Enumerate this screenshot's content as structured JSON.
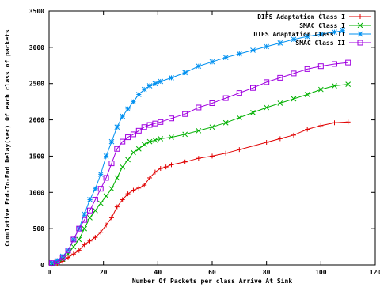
{
  "chart_data": {
    "type": "line",
    "title": "",
    "xlabel": "Number Of Packets per class Arrive At Sink",
    "ylabel": "Cumulative End-To-End Delay(sec) Of each class of packets",
    "xlim": [
      0,
      120
    ],
    "ylim": [
      0,
      3500
    ],
    "xticks": [
      0,
      20,
      40,
      60,
      80,
      100,
      120
    ],
    "yticks": [
      0,
      500,
      1000,
      1500,
      2000,
      2500,
      3000,
      3500
    ],
    "grid": false,
    "legend_position": "top-right",
    "series": [
      {
        "name": "DIFS Adaptation Class I",
        "color": "#e00000",
        "marker": "plus",
        "points": [
          [
            1,
            10
          ],
          [
            3,
            20
          ],
          [
            5,
            50
          ],
          [
            7,
            100
          ],
          [
            9,
            150
          ],
          [
            11,
            200
          ],
          [
            13,
            280
          ],
          [
            15,
            330
          ],
          [
            17,
            380
          ],
          [
            19,
            450
          ],
          [
            21,
            550
          ],
          [
            23,
            650
          ],
          [
            25,
            800
          ],
          [
            27,
            900
          ],
          [
            29,
            980
          ],
          [
            31,
            1030
          ],
          [
            33,
            1060
          ],
          [
            35,
            1100
          ],
          [
            37,
            1200
          ],
          [
            39,
            1280
          ],
          [
            41,
            1330
          ],
          [
            43,
            1350
          ],
          [
            45,
            1380
          ],
          [
            50,
            1420
          ],
          [
            55,
            1470
          ],
          [
            60,
            1500
          ],
          [
            65,
            1540
          ],
          [
            70,
            1590
          ],
          [
            75,
            1640
          ],
          [
            80,
            1690
          ],
          [
            85,
            1740
          ],
          [
            90,
            1790
          ],
          [
            95,
            1870
          ],
          [
            100,
            1920
          ],
          [
            105,
            1960
          ],
          [
            110,
            1970
          ]
        ]
      },
      {
        "name": "SMAC Class I",
        "color": "#00b000",
        "marker": "x",
        "points": [
          [
            1,
            20
          ],
          [
            3,
            40
          ],
          [
            5,
            80
          ],
          [
            7,
            150
          ],
          [
            9,
            250
          ],
          [
            11,
            350
          ],
          [
            13,
            500
          ],
          [
            15,
            650
          ],
          [
            17,
            750
          ],
          [
            19,
            850
          ],
          [
            21,
            950
          ],
          [
            23,
            1050
          ],
          [
            25,
            1200
          ],
          [
            27,
            1350
          ],
          [
            29,
            1450
          ],
          [
            31,
            1550
          ],
          [
            33,
            1600
          ],
          [
            35,
            1660
          ],
          [
            37,
            1700
          ],
          [
            39,
            1720
          ],
          [
            41,
            1740
          ],
          [
            45,
            1760
          ],
          [
            50,
            1800
          ],
          [
            55,
            1850
          ],
          [
            60,
            1900
          ],
          [
            65,
            1960
          ],
          [
            70,
            2030
          ],
          [
            75,
            2100
          ],
          [
            80,
            2170
          ],
          [
            85,
            2230
          ],
          [
            90,
            2290
          ],
          [
            95,
            2350
          ],
          [
            100,
            2420
          ],
          [
            105,
            2470
          ],
          [
            110,
            2490
          ]
        ]
      },
      {
        "name": "DIFS Adaptation Class II",
        "color": "#0090f0",
        "marker": "star",
        "points": [
          [
            1,
            30
          ],
          [
            3,
            60
          ],
          [
            5,
            120
          ],
          [
            7,
            200
          ],
          [
            9,
            350
          ],
          [
            11,
            500
          ],
          [
            13,
            700
          ],
          [
            15,
            900
          ],
          [
            17,
            1050
          ],
          [
            19,
            1250
          ],
          [
            21,
            1500
          ],
          [
            23,
            1700
          ],
          [
            25,
            1900
          ],
          [
            27,
            2050
          ],
          [
            29,
            2150
          ],
          [
            31,
            2250
          ],
          [
            33,
            2350
          ],
          [
            35,
            2420
          ],
          [
            37,
            2470
          ],
          [
            39,
            2500
          ],
          [
            41,
            2530
          ],
          [
            45,
            2580
          ],
          [
            50,
            2650
          ],
          [
            55,
            2740
          ],
          [
            60,
            2800
          ],
          [
            65,
            2860
          ],
          [
            70,
            2910
          ],
          [
            75,
            2960
          ],
          [
            80,
            3010
          ],
          [
            85,
            3060
          ],
          [
            90,
            3110
          ],
          [
            95,
            3150
          ],
          [
            100,
            3180
          ],
          [
            105,
            3210
          ],
          [
            108,
            3230
          ]
        ]
      },
      {
        "name": "SMAC Class II",
        "color": "#a000e0",
        "marker": "square",
        "points": [
          [
            1,
            25
          ],
          [
            3,
            50
          ],
          [
            5,
            100
          ],
          [
            7,
            200
          ],
          [
            9,
            350
          ],
          [
            11,
            500
          ],
          [
            13,
            620
          ],
          [
            15,
            750
          ],
          [
            17,
            900
          ],
          [
            19,
            1050
          ],
          [
            21,
            1200
          ],
          [
            23,
            1400
          ],
          [
            25,
            1600
          ],
          [
            27,
            1700
          ],
          [
            29,
            1760
          ],
          [
            31,
            1800
          ],
          [
            33,
            1850
          ],
          [
            35,
            1900
          ],
          [
            37,
            1930
          ],
          [
            39,
            1950
          ],
          [
            41,
            1970
          ],
          [
            45,
            2020
          ],
          [
            50,
            2080
          ],
          [
            55,
            2170
          ],
          [
            60,
            2230
          ],
          [
            65,
            2300
          ],
          [
            70,
            2370
          ],
          [
            75,
            2440
          ],
          [
            80,
            2520
          ],
          [
            85,
            2580
          ],
          [
            90,
            2640
          ],
          [
            95,
            2700
          ],
          [
            100,
            2740
          ],
          [
            105,
            2770
          ],
          [
            110,
            2790
          ]
        ]
      }
    ]
  }
}
